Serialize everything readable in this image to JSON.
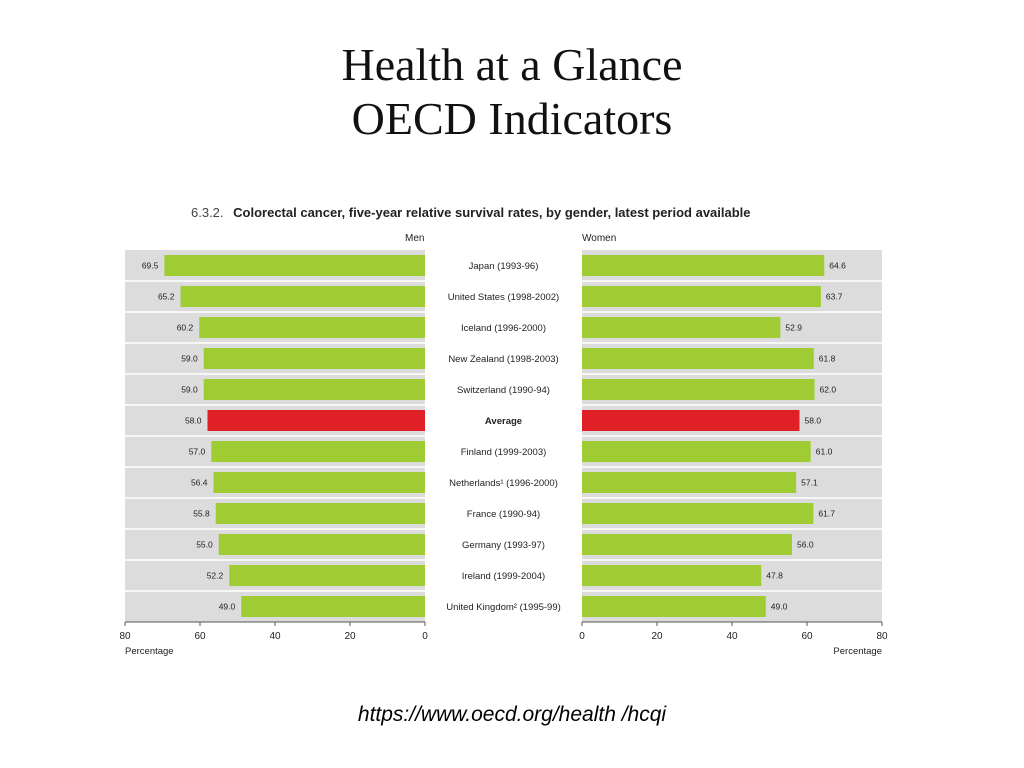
{
  "slide": {
    "title_line1": "Health at a Glance",
    "title_line2": "OECD Indicators",
    "source_url": "https://www.oecd.org/health /hcqi"
  },
  "figure": {
    "number": "6.3.2.",
    "caption": "Colorectal cancer, five-year relative survival rates, by gender, latest period available"
  },
  "colors": {
    "bar": "#9fcc33",
    "highlight": "#e02027",
    "row_bg": "#dcdcdc",
    "row_border": "#ffffff"
  },
  "chart_data": {
    "type": "bar",
    "orientation": "horizontal",
    "layout": "back-to-back",
    "categories": [
      "Japan (1993-96)",
      "United States (1998-2002)",
      "Iceland (1996-2000)",
      "New Zealand (1998-2003)",
      "Switzerland (1990-94)",
      "Average",
      "Finland (1999-2003)",
      "Netherlands¹ (1996-2000)",
      "France (1990-94)",
      "Germany (1993-97)",
      "Ireland (1999-2004)",
      "United Kingdom² (1995-99)"
    ],
    "highlight_category": "Average",
    "series": [
      {
        "name": "Men",
        "values": [
          69.5,
          65.2,
          60.2,
          59.0,
          59.0,
          58.0,
          57.0,
          56.4,
          55.8,
          55.0,
          52.2,
          49.0
        ],
        "labels": [
          "69.5",
          "65.2",
          "60.2",
          "59.0",
          "59.0",
          "58.0",
          "57.0",
          "56.4",
          "55.8",
          "55.0",
          "52.2",
          "49.0"
        ]
      },
      {
        "name": "Women",
        "values": [
          64.6,
          63.7,
          52.9,
          61.8,
          62.0,
          58.0,
          61.0,
          57.1,
          61.7,
          56.0,
          47.8,
          49.0
        ],
        "labels": [
          "64.6",
          "63.7",
          "52.9",
          "61.8",
          "62.0",
          "58.0",
          "61.0",
          "57.1",
          "61.7",
          "56.0",
          "47.8",
          "49.0"
        ]
      }
    ],
    "xlim": [
      0,
      80
    ],
    "xticks": [
      "80",
      "60",
      "40",
      "20",
      "0"
    ],
    "xticks_right": [
      "0",
      "20",
      "40",
      "60",
      "80"
    ],
    "xlabel": "Percentage",
    "grid": false,
    "legend": "none"
  }
}
